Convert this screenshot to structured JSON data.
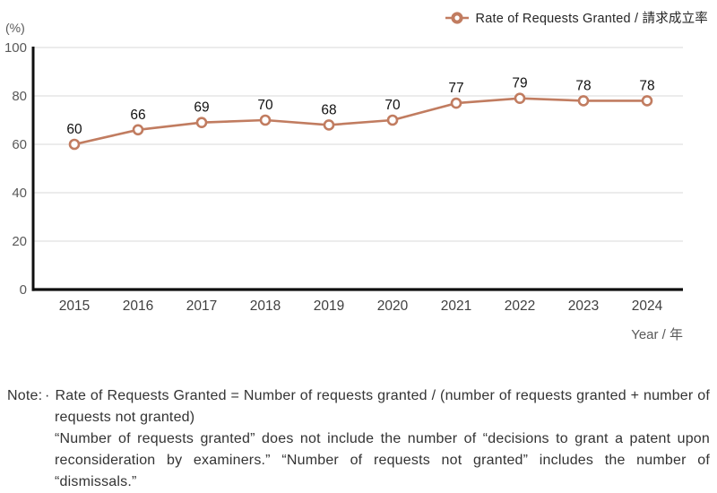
{
  "legend": {
    "label": "Rate of Requests Granted / 請求成立率"
  },
  "chart_data": {
    "type": "line",
    "x": [
      "2015",
      "2016",
      "2017",
      "2018",
      "2019",
      "2020",
      "2021",
      "2022",
      "2023",
      "2024"
    ],
    "series": [
      {
        "name": "Rate of Requests Granted / 請求成立率",
        "values": [
          60,
          66,
          69,
          70,
          68,
          70,
          77,
          79,
          78,
          78
        ]
      }
    ],
    "title": "",
    "xlabel": "Year / 年",
    "ylabel": "(%)",
    "ylim": [
      0,
      100
    ],
    "yticks": [
      0,
      20,
      40,
      60,
      80,
      100
    ],
    "grid": true,
    "legend_position": "top-right",
    "marker": "open-circle",
    "show_point_labels": true,
    "colors": {
      "line": "#c17c60",
      "marker_fill": "#ffffff",
      "grid": "#d9d9d9",
      "axis": "#0f0f0f",
      "tick_label": "#595959",
      "x_label": "#404040",
      "unit_label": "#595959",
      "point_label": "#111111"
    }
  },
  "note": {
    "label": "Note:",
    "bullet": "·",
    "paragraph1": "Rate of Requests Granted = Number of requests granted / (number of requests granted + number of requests not granted)",
    "paragraph2": "“Number of requests granted” does not include the number of “decisions to grant a patent upon reconsideration by examiners.”  “Number of requests not granted” includes the number of “dismissals.”"
  }
}
